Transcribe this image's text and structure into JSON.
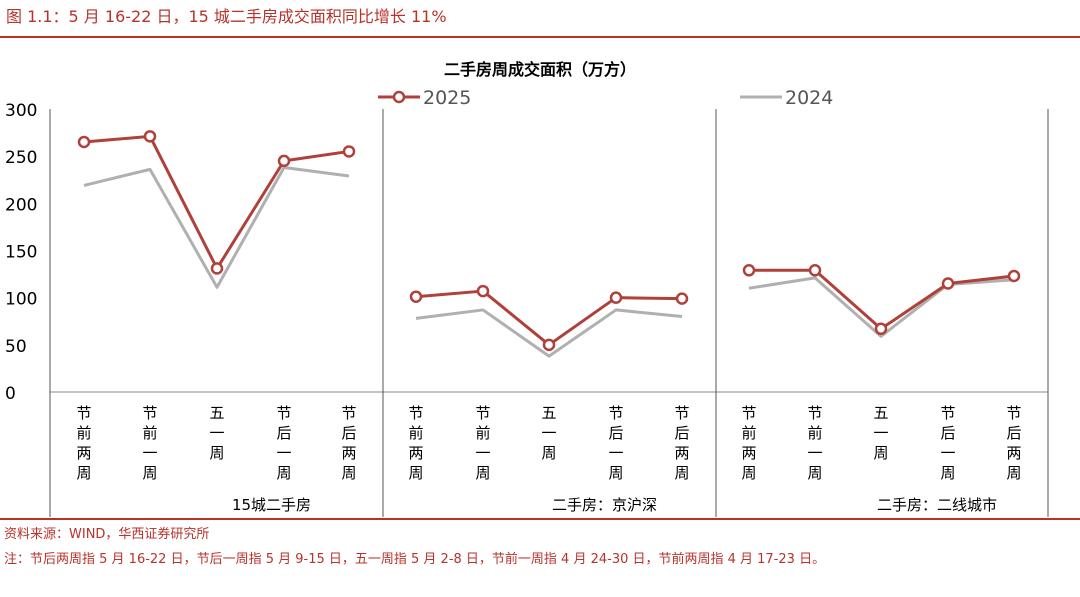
{
  "figure_title": "图 1.1：5 月 16-22 日，15 城二手房成交面积同比增长 11%",
  "source": "资料来源：WIND，华西证券研究所",
  "note": "注：节后两周指 5 月 16-22 日，节后一周指 5 月 9-15 日，五一周指 5 月 2-8 日，节前一周指 4 月 24-30 日，节前两周指 4 月 17-23 日。",
  "colors": {
    "accent": "#b8322a",
    "series_2025": "#b0403a",
    "series_2024": "#b0b0b0"
  },
  "chart_data": {
    "type": "line",
    "title": "二手房周成交面积（万方）",
    "ylim": [
      0,
      300
    ],
    "yticks": [
      0,
      50,
      100,
      150,
      200,
      250,
      300
    ],
    "legend_position": "top",
    "categories": [
      "节前两周",
      "节前一周",
      "五一周",
      "节后一周",
      "节后两周"
    ],
    "series": [
      {
        "name": "2025",
        "color": "#b0403a",
        "markers": true
      },
      {
        "name": "2024",
        "color": "#b0b0b0",
        "markers": false
      }
    ],
    "panels": [
      {
        "label": "15城二手房",
        "values": {
          "2025": [
            265,
            271,
            131,
            245,
            255
          ],
          "2024": [
            219,
            236,
            111,
            238,
            229
          ]
        }
      },
      {
        "label": "二手房：京沪深",
        "values": {
          "2025": [
            101,
            107,
            50,
            100,
            99
          ],
          "2024": [
            78,
            87,
            38,
            87,
            80
          ]
        }
      },
      {
        "label": "二手房：二线城市",
        "values": {
          "2025": [
            129,
            129,
            67,
            115,
            123
          ],
          "2024": [
            110,
            121,
            59,
            114,
            119
          ]
        }
      }
    ]
  }
}
